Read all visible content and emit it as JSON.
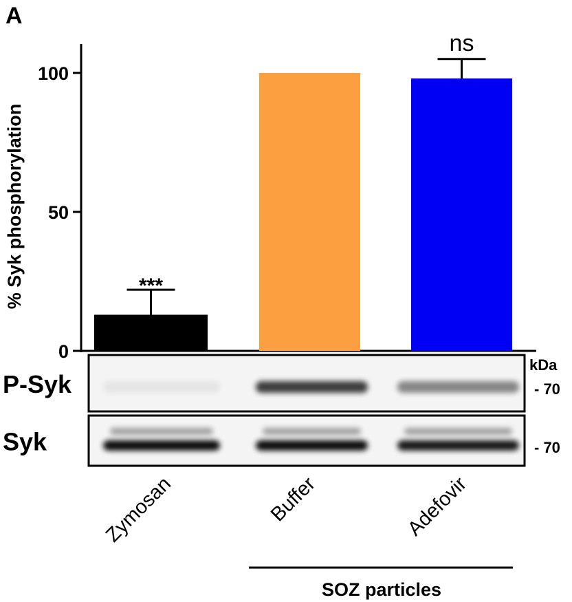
{
  "panel_label": "A",
  "chart_data": {
    "type": "bar",
    "ylabel": "% Syk phosphorylation",
    "ylim": [
      0,
      110
    ],
    "yticks": [
      "0",
      "50",
      "100"
    ],
    "ytick_values": [
      0,
      50,
      100
    ],
    "categories": [
      "Zymosan",
      "Buffer",
      "Adefovir"
    ],
    "values": [
      13,
      100,
      98
    ],
    "errors": [
      9,
      0,
      7
    ],
    "colors": [
      "#000000",
      "#fb9f40",
      "#0000f4"
    ],
    "annotations": [
      "***",
      "",
      "ns"
    ],
    "group_label": "SOZ particles",
    "group_members": [
      "Buffer",
      "Adefovir"
    ]
  },
  "blots": {
    "unit_label": "kDa",
    "rows": [
      {
        "label": "P-Syk",
        "marker": "- 70",
        "lane_intensity": [
          0.06,
          0.75,
          0.45
        ]
      },
      {
        "label": "Syk",
        "marker": "- 70",
        "lane_intensity": [
          0.95,
          0.95,
          0.9
        ]
      }
    ]
  }
}
